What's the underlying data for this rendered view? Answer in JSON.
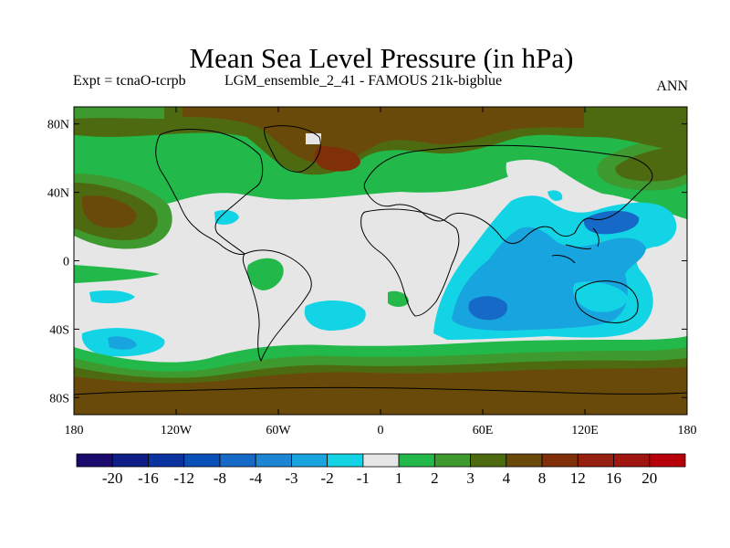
{
  "header": {
    "title": "Mean Sea Level Pressure (in hPa)",
    "expt": "Expt = tcnaO-tcrpb",
    "ensemble": "LGM_ensemble_2_41 - FAMOUS 21k-bigblue",
    "season": "ANN"
  },
  "axes": {
    "lat_labels": [
      "80N",
      "40N",
      "0",
      "40S",
      "80S"
    ],
    "lat_values": [
      80,
      40,
      0,
      -40,
      -80
    ],
    "lon_labels": [
      "180",
      "120W",
      "60W",
      "0",
      "60E",
      "120E",
      "180"
    ],
    "lon_values": [
      -180,
      -120,
      -60,
      0,
      60,
      120,
      180
    ]
  },
  "colorbar": {
    "labels": [
      "-20",
      "-16",
      "-12",
      "-8",
      "-4",
      "-3",
      "-2",
      "-1",
      "1",
      "2",
      "3",
      "4",
      "8",
      "12",
      "16",
      "20"
    ],
    "colors": [
      "#1b0a6e",
      "#0e1e86",
      "#0a33a0",
      "#0a4fb5",
      "#1669c6",
      "#1d86d4",
      "#18a4de",
      "#12d4e4",
      "#e6e6e6",
      "#22b84a",
      "#3e9a2e",
      "#4e6a10",
      "#6a4a0a",
      "#7f3008",
      "#952010",
      "#a01510",
      "#b8000a"
    ]
  },
  "palette": {
    "land_outline": "#000000",
    "near_zero": "#e6e6e6",
    "green1": "#22b84a",
    "green2": "#3e9a2e",
    "olive": "#4e6a10",
    "brown": "#6a4a0a",
    "rust": "#7f3008",
    "cyan": "#12d4e4",
    "sky": "#18a4de",
    "blue": "#1669c6"
  }
}
